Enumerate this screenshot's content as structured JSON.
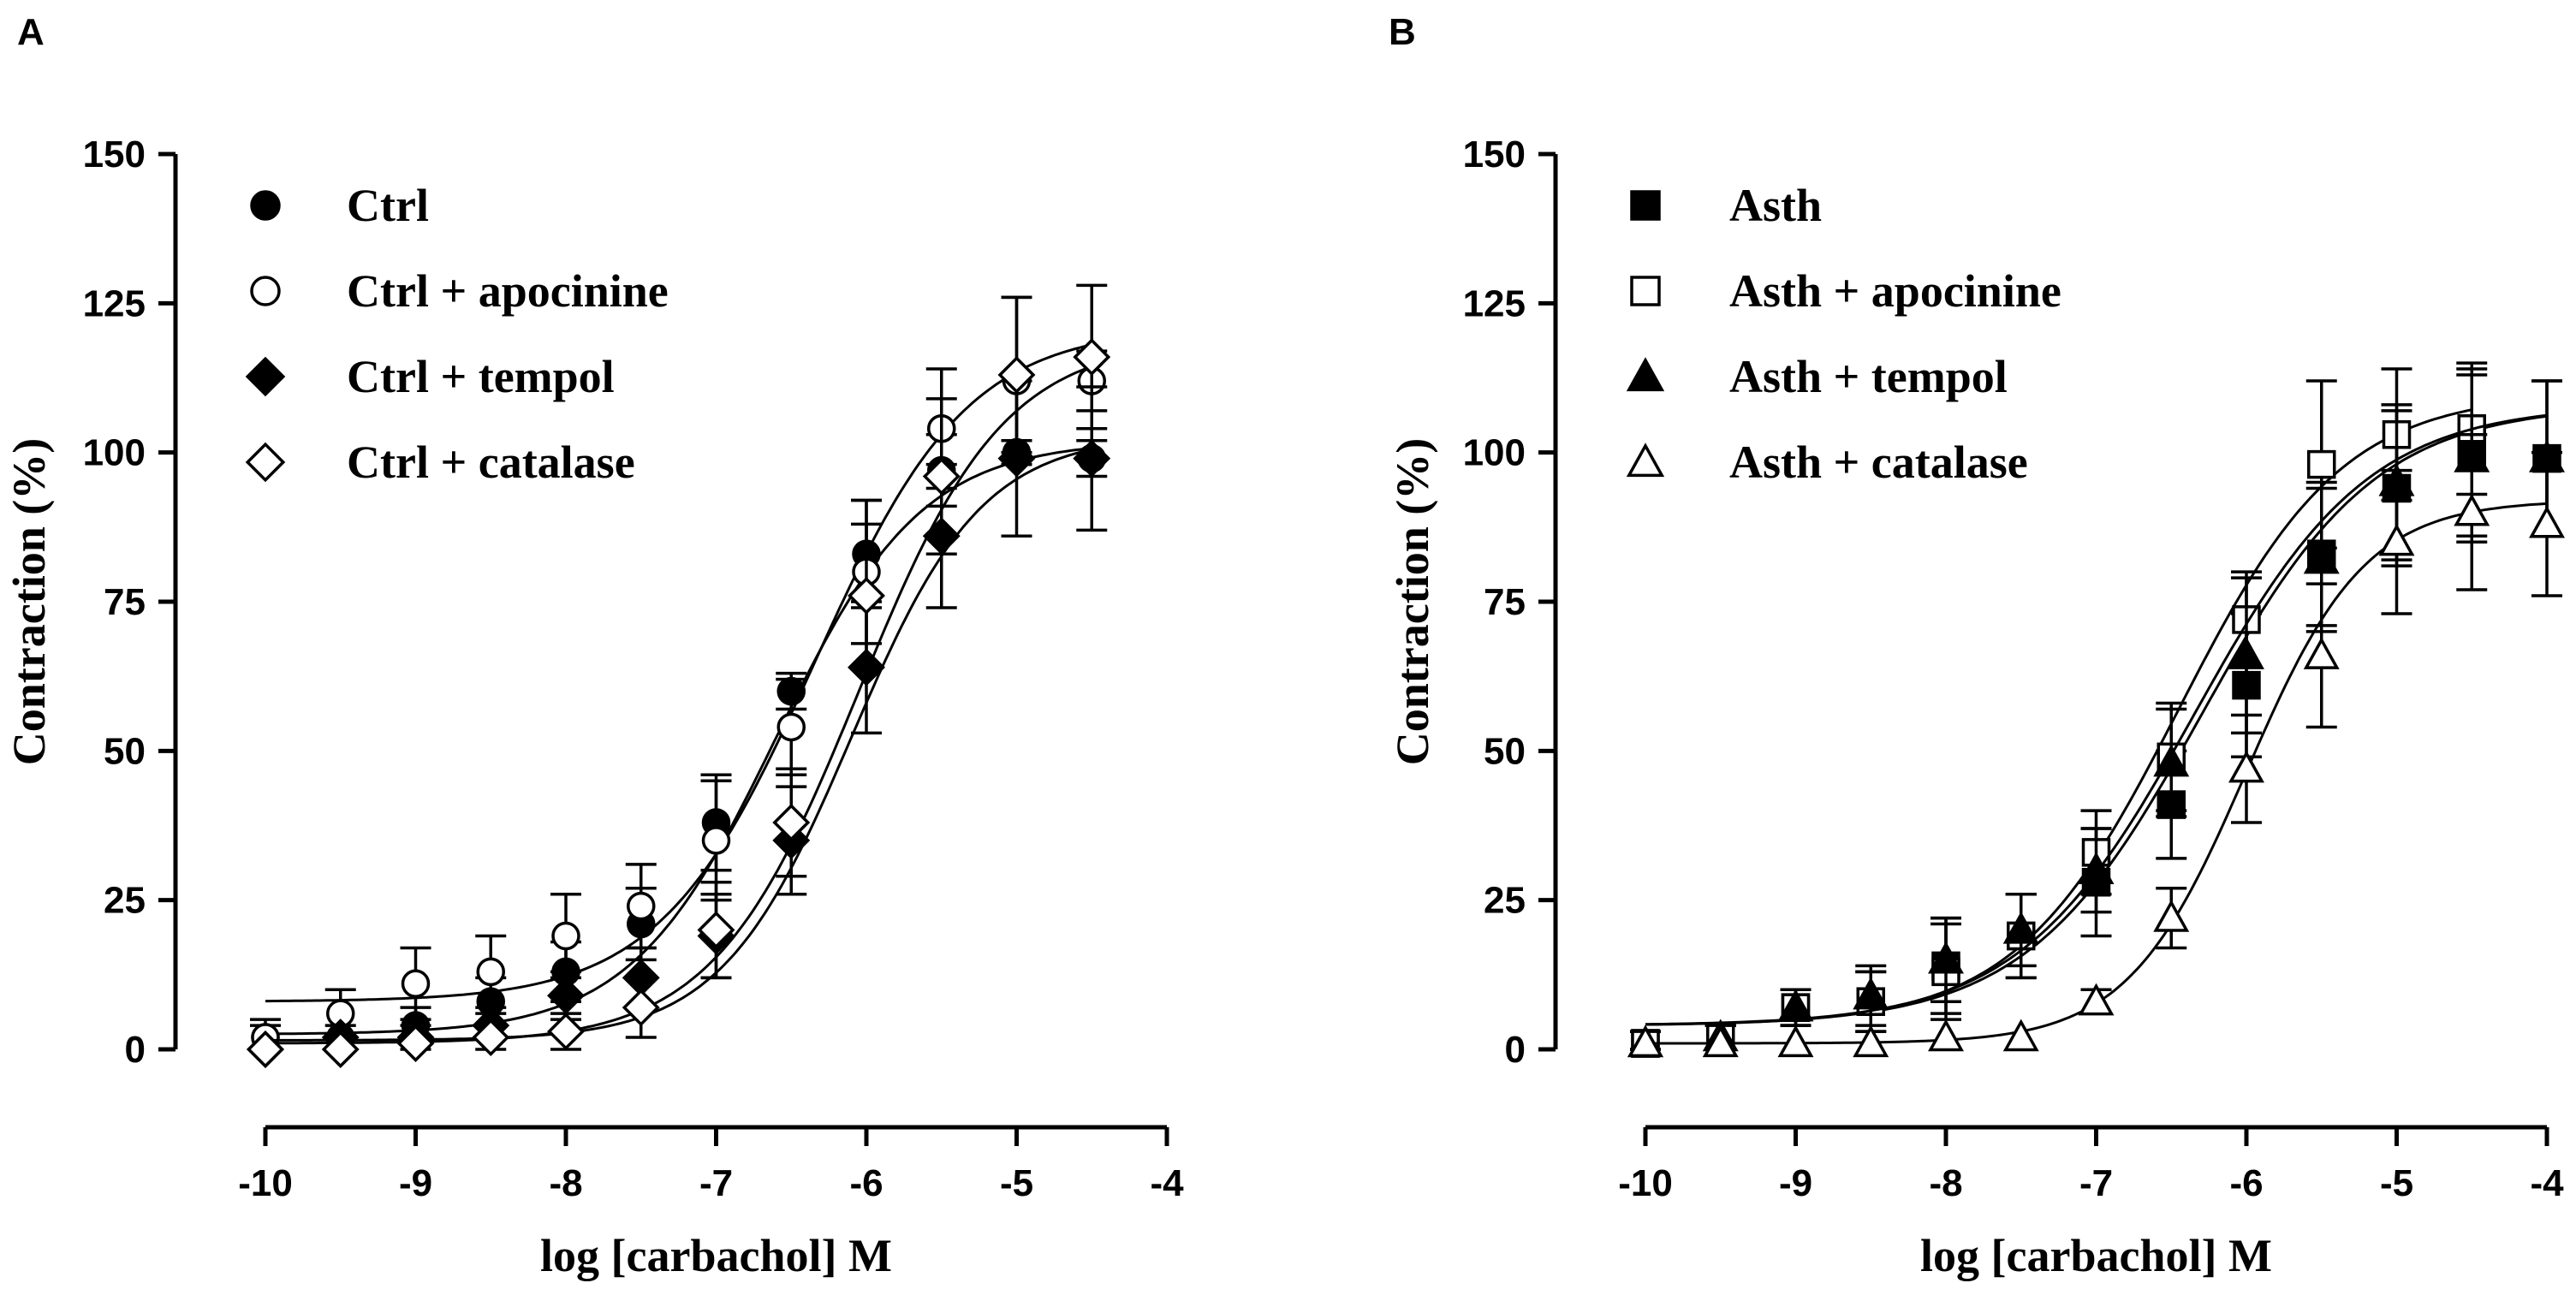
{
  "chart_data": [
    {
      "panel_label": "A",
      "type": "scatter",
      "xlabel": "log [carbachol] M",
      "ylabel": "Contraction (%)",
      "xlim": [
        -10,
        -4
      ],
      "ylim": [
        0,
        150
      ],
      "xticks": [
        "-10",
        "-9",
        "-8",
        "-7",
        "-6",
        "-5",
        "-4"
      ],
      "yticks": [
        "0",
        "25",
        "50",
        "75",
        "100",
        "125",
        "150"
      ],
      "legend_position": "top-left",
      "series": [
        {
          "name": "Ctrl",
          "marker": "circle-filled",
          "x": [
            -10,
            -9.5,
            -9,
            -8.5,
            -8,
            -7.5,
            -7,
            -6.5,
            -6,
            -5.5,
            -5,
            -4.5
          ],
          "y": [
            2,
            2,
            4,
            8,
            13,
            21,
            38,
            60,
            83,
            97,
            100,
            99
          ],
          "err": [
            2,
            2,
            3,
            4,
            5,
            6,
            8,
            3,
            9,
            6,
            2,
            3
          ],
          "fit": {
            "bottom": 2.5,
            "top": 102,
            "logec50": -6.6,
            "hill": 0.9
          }
        },
        {
          "name": "Ctrl + apocinine",
          "marker": "circle-open",
          "x": [
            -10,
            -9.5,
            -9,
            -8.5,
            -8,
            -7.5,
            -7,
            -6.5,
            -6,
            -5.5,
            -5,
            -4.5
          ],
          "y": [
            2,
            6,
            11,
            13,
            19,
            24,
            35,
            54,
            80,
            104,
            112,
            112
          ],
          "err": [
            3,
            4,
            6,
            6,
            7,
            7,
            10,
            8,
            12,
            10,
            14,
            5
          ],
          "fit": {
            "bottom": 8,
            "top": 121,
            "logec50": -6.35,
            "hill": 0.85
          }
        },
        {
          "name": "Ctrl + tempol",
          "marker": "diamond-filled",
          "x": [
            -10,
            -9.5,
            -9,
            -8.5,
            -8,
            -7.5,
            -7,
            -6.5,
            -6,
            -5.5,
            -5,
            -4.5
          ],
          "y": [
            0,
            2,
            2,
            4,
            9,
            12,
            19,
            35,
            64,
            86,
            99,
            99
          ],
          "err": [
            1,
            1,
            2,
            2,
            4,
            5,
            7,
            9,
            11,
            12,
            13,
            12
          ],
          "fit": {
            "bottom": 1.5,
            "top": 103,
            "logec50": -6.1,
            "hill": 1.0
          }
        },
        {
          "name": "Ctrl + catalase",
          "marker": "diamond-open",
          "x": [
            -10,
            -9.5,
            -9,
            -8.5,
            -8,
            -7.5,
            -7,
            -6.5,
            -6,
            -5.5,
            -5,
            -4.5
          ],
          "y": [
            0,
            0,
            1,
            2,
            3,
            7,
            20,
            38,
            76,
            96,
            113,
            116
          ],
          "err": [
            1,
            1,
            1,
            2,
            3,
            5,
            8,
            9,
            12,
            13,
            13,
            12
          ],
          "fit": {
            "bottom": 1,
            "top": 119,
            "logec50": -6.05,
            "hill": 0.9
          }
        }
      ]
    },
    {
      "panel_label": "B",
      "type": "scatter",
      "xlabel": "log [carbachol] M",
      "ylabel": "Contraction (%)",
      "xlim": [
        -10,
        -4
      ],
      "ylim": [
        0,
        150
      ],
      "xticks": [
        "-10",
        "-9",
        "-8",
        "-7",
        "-6",
        "-5",
        "-4"
      ],
      "yticks": [
        "0",
        "25",
        "50",
        "75",
        "100",
        "125",
        "150"
      ],
      "legend_position": "top-left",
      "series": [
        {
          "name": "Asth",
          "marker": "square-filled",
          "x": [
            -10,
            -9.5,
            -9,
            -8.5,
            -8,
            -7.5,
            -7,
            -6.5,
            -6,
            -5.5,
            -5,
            -4.5,
            -4
          ],
          "y": [
            1,
            2,
            7,
            8,
            14,
            19,
            28,
            41,
            61,
            83,
            94,
            100,
            99
          ],
          "err": [
            2,
            2,
            3,
            5,
            8,
            7,
            9,
            9,
            12,
            12,
            13,
            14,
            13
          ],
          "fit": {
            "bottom": 4,
            "top": 108,
            "logec50": -6.3,
            "hill": 0.75
          }
        },
        {
          "name": "Asth + apocinine",
          "marker": "square-open",
          "x": [
            -10,
            -9.5,
            -9,
            -8.5,
            -8,
            -7.5,
            -7,
            -6.5,
            -6,
            -5.5,
            -5,
            -4.5
          ],
          "y": [
            1,
            2,
            7,
            8,
            13,
            19,
            33,
            49,
            72,
            98,
            103,
            104
          ],
          "err": [
            2,
            2,
            3,
            5,
            8,
            7,
            7,
            9,
            8,
            14,
            11,
            11
          ],
          "fit": {
            "bottom": 4,
            "top": 110,
            "logec50": -6.45,
            "hill": 0.8
          }
        },
        {
          "name": "Asth + tempol",
          "marker": "triangle-filled",
          "x": [
            -10,
            -9.5,
            -9,
            -8.5,
            -8,
            -7.5,
            -7,
            -6.5,
            -6,
            -5.5,
            -5,
            -4.5,
            -4
          ],
          "y": [
            1,
            2,
            7,
            9,
            15,
            20,
            30,
            48,
            66,
            82,
            95,
            99,
            99
          ],
          "err": [
            2,
            2,
            3,
            5,
            7,
            6,
            7,
            9,
            13,
            12,
            13,
            14,
            13
          ],
          "fit": {
            "bottom": 4,
            "top": 108,
            "logec50": -6.35,
            "hill": 0.75
          }
        },
        {
          "name": "Asth + catalase",
          "marker": "triangle-open",
          "x": [
            -10,
            -9.5,
            -9,
            -8.5,
            -8,
            -7.5,
            -7,
            -6.5,
            -6,
            -5.5,
            -5,
            -4.5,
            -4
          ],
          "y": [
            1,
            1,
            1,
            1,
            2,
            2,
            8,
            22,
            47,
            66,
            85,
            90,
            88
          ],
          "err": [
            1,
            1,
            1,
            1,
            1,
            1,
            2,
            5,
            9,
            12,
            12,
            13,
            12
          ],
          "fit": {
            "bottom": 1,
            "top": 92,
            "logec50": -6.0,
            "hill": 1.1
          }
        }
      ]
    }
  ]
}
